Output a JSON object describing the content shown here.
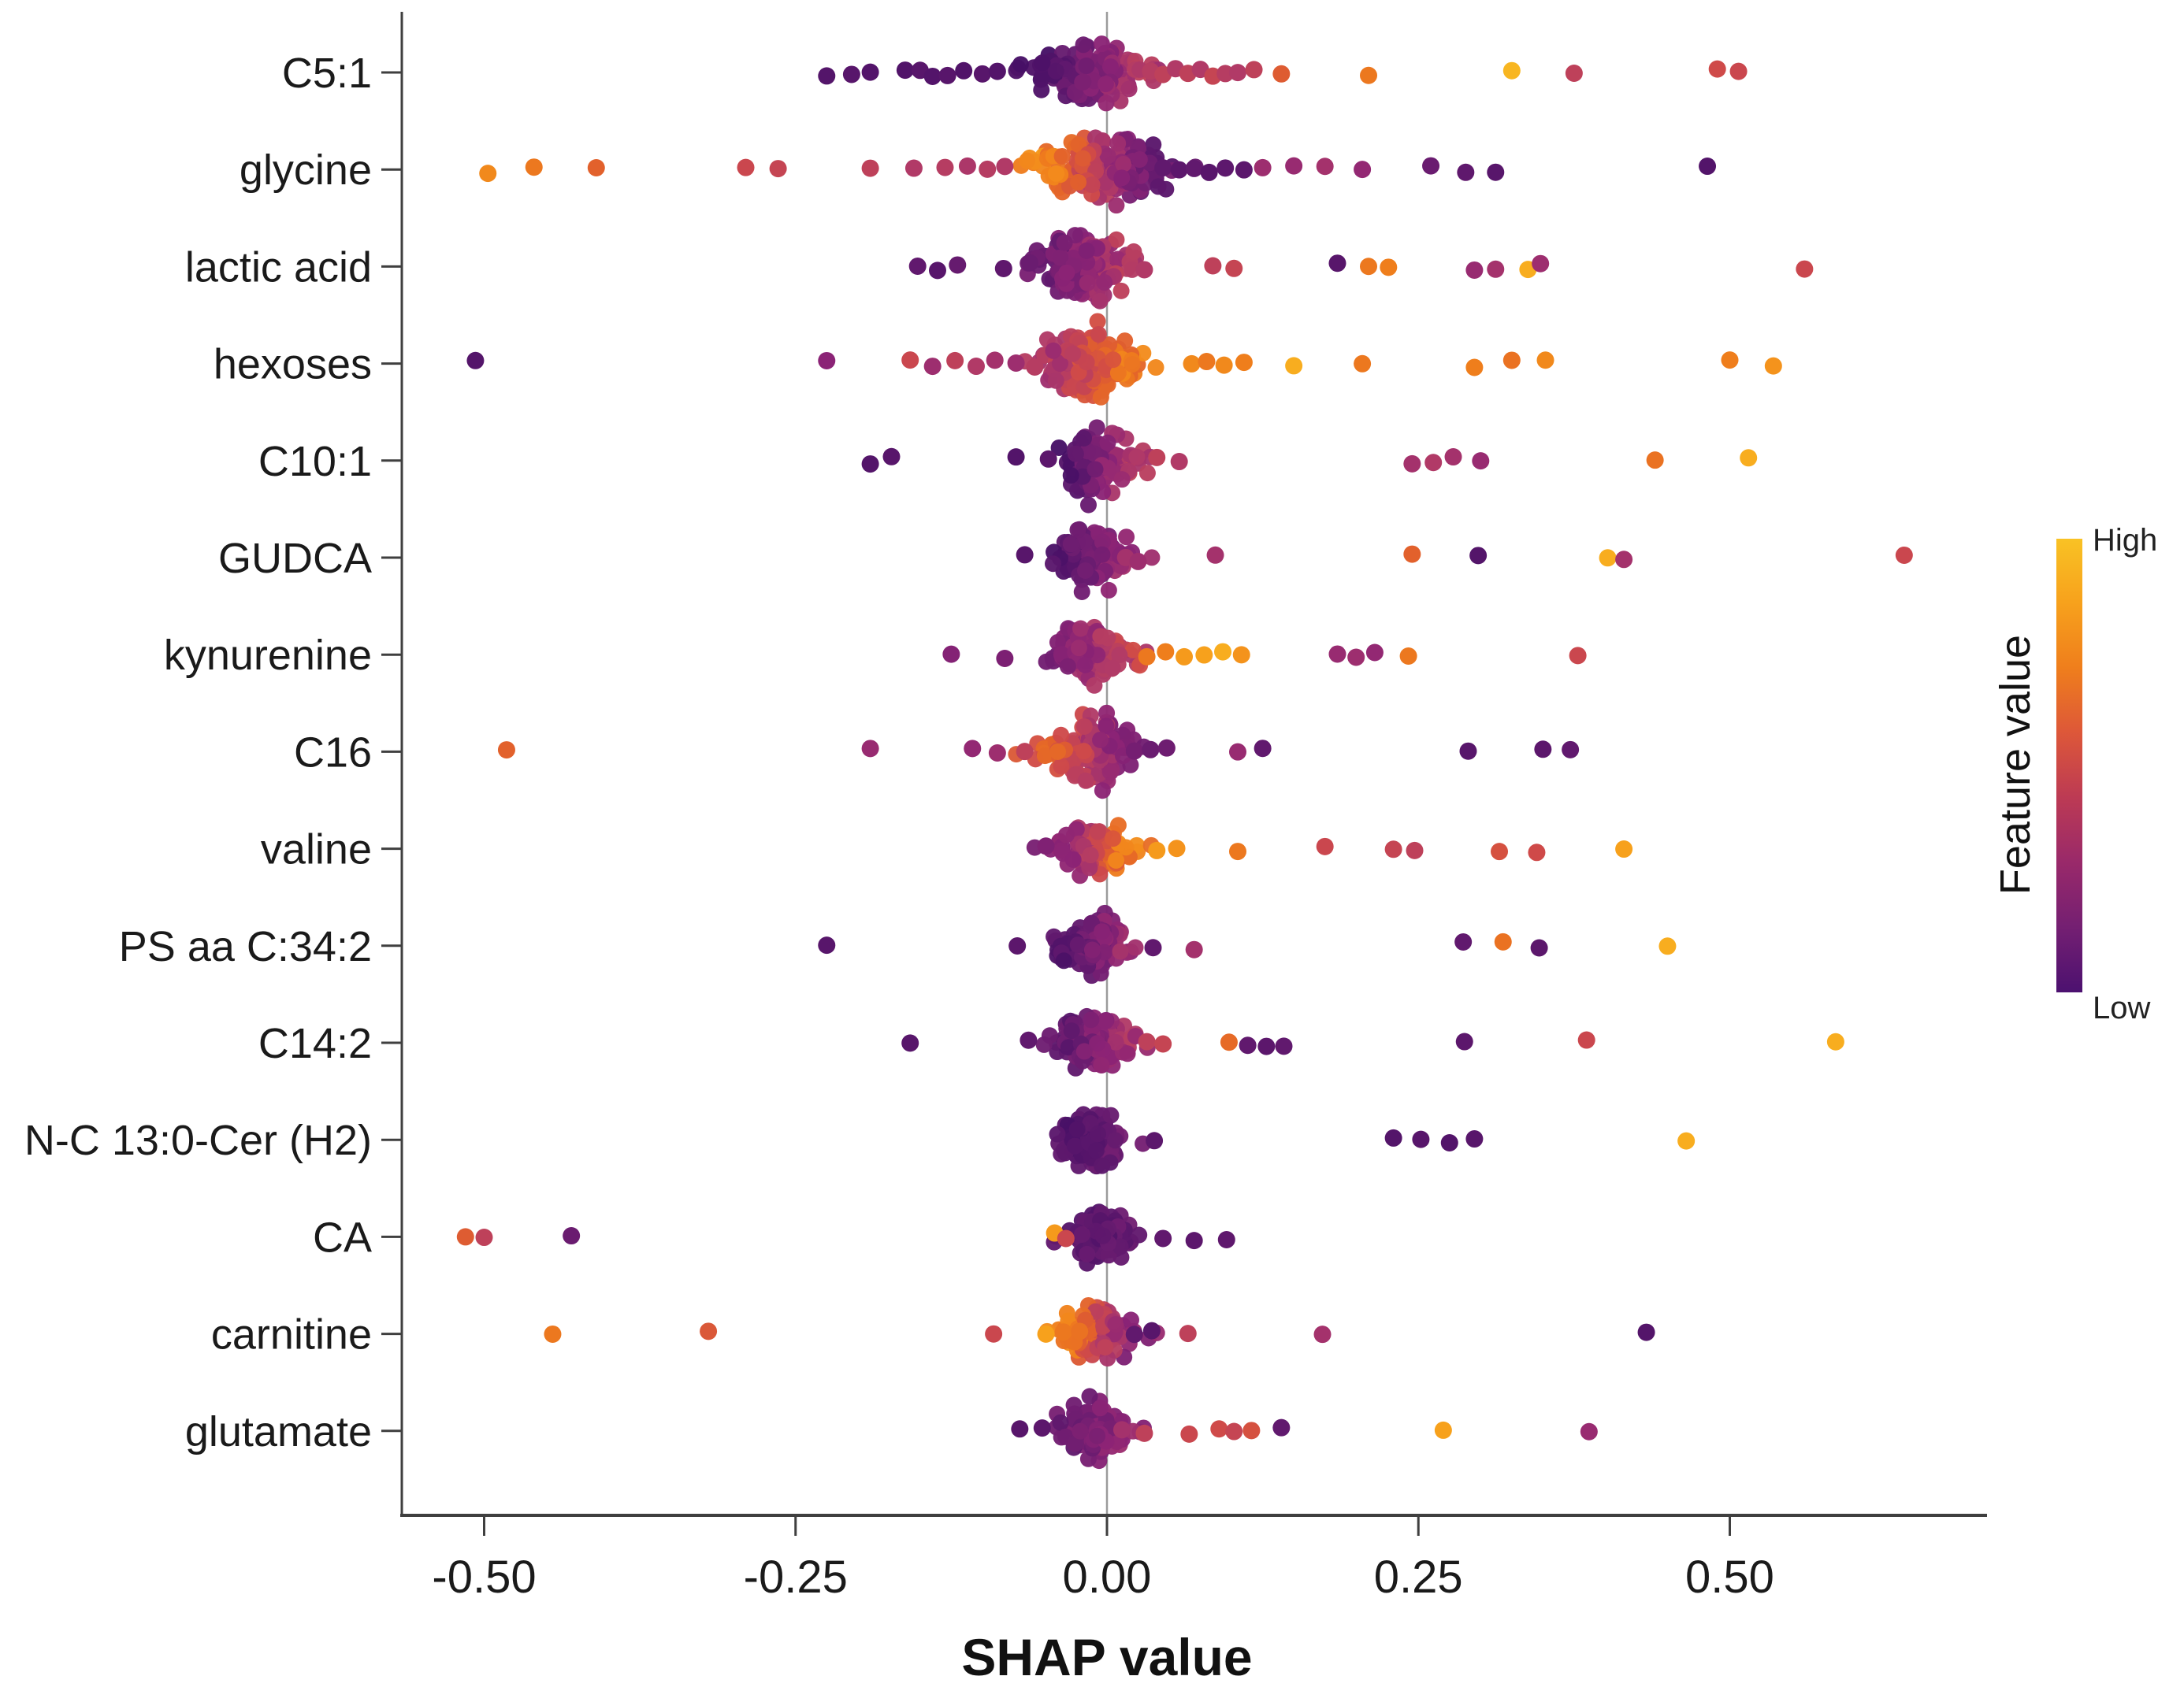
{
  "chart_data": {
    "type": "scatter",
    "subtype": "shap-beeswarm",
    "title": "",
    "xlabel": "SHAP value",
    "ylabel": "",
    "xlim": [
      -0.566,
      0.705
    ],
    "grid": false,
    "zero_line": true,
    "x_ticks": [
      -0.5,
      -0.25,
      0.0,
      0.25,
      0.5
    ],
    "x_tick_labels": [
      "-0.50",
      "-0.25",
      "0.00",
      "0.25",
      "0.50"
    ],
    "legend": {
      "title": "Feature value",
      "high_label": "High",
      "low_label": "Low",
      "position": "right",
      "gradient_top_to_bottom": [
        "#f9c224",
        "#f7a11c",
        "#ef7e1c",
        "#dd5739",
        "#bc3a54",
        "#99296a",
        "#741f72",
        "#4c1170"
      ]
    },
    "colormap_stops": [
      [
        0.0,
        "#461066"
      ],
      [
        0.2,
        "#6a1c70"
      ],
      [
        0.35,
        "#8b2376"
      ],
      [
        0.5,
        "#b13a67"
      ],
      [
        0.62,
        "#cf4a49"
      ],
      [
        0.72,
        "#e2612c"
      ],
      [
        0.82,
        "#ef7e1c"
      ],
      [
        0.92,
        "#f7a11c"
      ],
      [
        1.0,
        "#f9c224"
      ]
    ],
    "features": [
      {
        "name": "C5:1",
        "cluster": {
          "x0": -0.012,
          "sd": 0.024,
          "hh": 55,
          "n": 150,
          "vL": 0.06,
          "vR": 0.5
        },
        "outliers": [
          [
            -0.225,
            0.08
          ],
          [
            -0.205,
            0.1
          ],
          [
            -0.19,
            0.07
          ],
          [
            -0.162,
            0.06
          ],
          [
            -0.15,
            0.1
          ],
          [
            -0.14,
            0.07
          ],
          [
            -0.128,
            0.1
          ],
          [
            -0.115,
            0.06
          ],
          [
            -0.1,
            0.1
          ],
          [
            -0.088,
            0.07
          ],
          [
            0.035,
            0.52
          ],
          [
            0.045,
            0.55
          ],
          [
            0.055,
            0.5
          ],
          [
            0.065,
            0.55
          ],
          [
            0.075,
            0.5
          ],
          [
            0.085,
            0.58
          ],
          [
            0.095,
            0.52
          ],
          [
            0.105,
            0.5
          ],
          [
            0.118,
            0.55
          ],
          [
            0.14,
            0.7
          ],
          [
            0.21,
            0.8
          ],
          [
            0.325,
            0.97
          ],
          [
            0.375,
            0.55
          ],
          [
            0.49,
            0.62
          ],
          [
            0.507,
            0.6
          ]
        ]
      },
      {
        "name": "glycine",
        "cluster": {
          "x0": -0.004,
          "sd": 0.026,
          "hh": 60,
          "n": 160,
          "vL": 0.82,
          "vR": 0.18
        },
        "outliers": [
          [
            -0.497,
            0.85
          ],
          [
            -0.46,
            0.8
          ],
          [
            -0.41,
            0.72
          ],
          [
            -0.29,
            0.6
          ],
          [
            -0.264,
            0.58
          ],
          [
            -0.19,
            0.55
          ],
          [
            -0.155,
            0.5
          ],
          [
            -0.13,
            0.52
          ],
          [
            -0.112,
            0.48
          ],
          [
            -0.096,
            0.52
          ],
          [
            -0.082,
            0.5
          ],
          [
            0.045,
            0.15
          ],
          [
            0.058,
            0.12
          ],
          [
            0.07,
            0.15
          ],
          [
            0.082,
            0.1
          ],
          [
            0.095,
            0.13
          ],
          [
            0.11,
            0.12
          ],
          [
            0.125,
            0.42
          ],
          [
            0.15,
            0.4
          ],
          [
            0.175,
            0.45
          ],
          [
            0.205,
            0.38
          ],
          [
            0.26,
            0.2
          ],
          [
            0.288,
            0.14
          ],
          [
            0.312,
            0.1
          ],
          [
            0.482,
            0.07
          ]
        ]
      },
      {
        "name": "lactic acid",
        "cluster": {
          "x0": -0.02,
          "sd": 0.019,
          "hh": 62,
          "n": 135,
          "vL": 0.2,
          "vR": 0.48
        },
        "outliers": [
          [
            -0.152,
            0.15
          ],
          [
            -0.136,
            0.1
          ],
          [
            -0.12,
            0.18
          ],
          [
            -0.083,
            0.14
          ],
          [
            -0.062,
            0.2
          ],
          [
            0.03,
            0.5
          ],
          [
            0.085,
            0.55
          ],
          [
            0.102,
            0.58
          ],
          [
            0.185,
            0.1
          ],
          [
            0.21,
            0.8
          ],
          [
            0.226,
            0.82
          ],
          [
            0.295,
            0.4
          ],
          [
            0.312,
            0.45
          ],
          [
            0.338,
            0.95
          ],
          [
            0.348,
            0.42
          ],
          [
            0.56,
            0.6
          ]
        ]
      },
      {
        "name": "hexoses",
        "cluster": {
          "x0": -0.012,
          "sd": 0.021,
          "hh": 66,
          "n": 145,
          "vL": 0.48,
          "vR": 0.8
        },
        "outliers": [
          [
            -0.507,
            0.08
          ],
          [
            -0.225,
            0.35
          ],
          [
            -0.158,
            0.6
          ],
          [
            -0.14,
            0.42
          ],
          [
            -0.122,
            0.55
          ],
          [
            -0.105,
            0.5
          ],
          [
            -0.09,
            0.45
          ],
          [
            -0.073,
            0.42
          ],
          [
            -0.058,
            0.52
          ],
          [
            0.068,
            0.85
          ],
          [
            0.08,
            0.8
          ],
          [
            0.094,
            0.85
          ],
          [
            0.11,
            0.82
          ],
          [
            0.15,
            0.95
          ],
          [
            0.205,
            0.8
          ],
          [
            0.295,
            0.82
          ],
          [
            0.325,
            0.78
          ],
          [
            0.352,
            0.85
          ],
          [
            0.5,
            0.82
          ],
          [
            0.535,
            0.88
          ]
        ]
      },
      {
        "name": "C10:1",
        "cluster": {
          "x0": -0.008,
          "sd": 0.016,
          "hh": 68,
          "n": 125,
          "vL": 0.06,
          "vR": 0.52
        },
        "outliers": [
          [
            -0.19,
            0.08
          ],
          [
            -0.173,
            0.1
          ],
          [
            -0.073,
            0.07
          ],
          [
            -0.047,
            0.12
          ],
          [
            0.04,
            0.55
          ],
          [
            0.058,
            0.5
          ],
          [
            0.245,
            0.45
          ],
          [
            0.262,
            0.5
          ],
          [
            0.278,
            0.45
          ],
          [
            0.3,
            0.4
          ],
          [
            0.44,
            0.78
          ],
          [
            0.515,
            0.95
          ]
        ]
      },
      {
        "name": "GUDCA",
        "cluster": {
          "x0": -0.012,
          "sd": 0.015,
          "hh": 58,
          "n": 115,
          "vL": 0.1,
          "vR": 0.4
        },
        "outliers": [
          [
            -0.066,
            0.1
          ],
          [
            0.015,
            0.45
          ],
          [
            0.025,
            0.42
          ],
          [
            0.087,
            0.45
          ],
          [
            0.245,
            0.72
          ],
          [
            0.298,
            0.08
          ],
          [
            0.402,
            0.95
          ],
          [
            0.415,
            0.45
          ],
          [
            0.64,
            0.6
          ]
        ]
      },
      {
        "name": "kynurenine",
        "cluster": {
          "x0": -0.012,
          "sd": 0.016,
          "hh": 56,
          "n": 115,
          "vL": 0.3,
          "vR": 0.55
        },
        "outliers": [
          [
            -0.125,
            0.32
          ],
          [
            -0.082,
            0.28
          ],
          [
            0.032,
            0.8
          ],
          [
            0.047,
            0.82
          ],
          [
            0.062,
            0.9
          ],
          [
            0.078,
            0.92
          ],
          [
            0.093,
            0.95
          ],
          [
            0.108,
            0.88
          ],
          [
            0.185,
            0.4
          ],
          [
            0.2,
            0.42
          ],
          [
            0.215,
            0.38
          ],
          [
            0.242,
            0.8
          ],
          [
            0.378,
            0.6
          ]
        ]
      },
      {
        "name": "C16",
        "cluster": {
          "x0": -0.012,
          "sd": 0.019,
          "hh": 60,
          "n": 135,
          "vL": 0.7,
          "vR": 0.28
        },
        "outliers": [
          [
            -0.482,
            0.72
          ],
          [
            -0.19,
            0.4
          ],
          [
            -0.108,
            0.38
          ],
          [
            -0.088,
            0.42
          ],
          [
            -0.066,
            0.55
          ],
          [
            0.022,
            0.25
          ],
          [
            0.035,
            0.2
          ],
          [
            0.048,
            0.22
          ],
          [
            0.105,
            0.4
          ],
          [
            0.125,
            0.15
          ],
          [
            0.29,
            0.1
          ],
          [
            0.35,
            0.12
          ],
          [
            0.372,
            0.15
          ]
        ]
      },
      {
        "name": "valine",
        "cluster": {
          "x0": -0.01,
          "sd": 0.015,
          "hh": 48,
          "n": 105,
          "vL": 0.32,
          "vR": 0.82
        },
        "outliers": [
          [
            -0.049,
            0.3
          ],
          [
            0.04,
            0.9
          ],
          [
            0.056,
            0.88
          ],
          [
            0.105,
            0.8
          ],
          [
            0.175,
            0.6
          ],
          [
            0.23,
            0.58
          ],
          [
            0.247,
            0.55
          ],
          [
            0.315,
            0.65
          ],
          [
            0.345,
            0.62
          ],
          [
            0.415,
            0.92
          ]
        ]
      },
      {
        "name": "PS aa C:34:2",
        "cluster": {
          "x0": -0.012,
          "sd": 0.014,
          "hh": 52,
          "n": 112,
          "vL": 0.1,
          "vR": 0.38
        },
        "outliers": [
          [
            -0.225,
            0.1
          ],
          [
            -0.072,
            0.12
          ],
          [
            0.037,
            0.15
          ],
          [
            0.07,
            0.45
          ],
          [
            0.286,
            0.15
          ],
          [
            0.318,
            0.78
          ],
          [
            0.347,
            0.12
          ],
          [
            0.45,
            0.95
          ]
        ]
      },
      {
        "name": "C14:2",
        "cluster": {
          "x0": -0.01,
          "sd": 0.015,
          "hh": 55,
          "n": 112,
          "vL": 0.15,
          "vR": 0.45
        },
        "outliers": [
          [
            -0.158,
            0.1
          ],
          [
            -0.063,
            0.15
          ],
          [
            0.032,
            0.55
          ],
          [
            0.045,
            0.58
          ],
          [
            0.098,
            0.75
          ],
          [
            0.113,
            0.15
          ],
          [
            0.128,
            0.12
          ],
          [
            0.142,
            0.15
          ],
          [
            0.287,
            0.12
          ],
          [
            0.385,
            0.6
          ],
          [
            0.585,
            0.95
          ]
        ]
      },
      {
        "name": "N-C 13:0-Cer (H2)",
        "cluster": {
          "x0": -0.012,
          "sd": 0.013,
          "hh": 50,
          "n": 100,
          "vL": 0.08,
          "vR": 0.2
        },
        "outliers": [
          [
            0.038,
            0.12
          ],
          [
            0.23,
            0.08
          ],
          [
            0.252,
            0.1
          ],
          [
            0.275,
            0.07
          ],
          [
            0.295,
            0.1
          ],
          [
            0.465,
            0.95
          ]
        ]
      },
      {
        "name": "CA",
        "cluster": {
          "x0": -0.006,
          "sd": 0.014,
          "hh": 48,
          "n": 112,
          "vL": 0.12,
          "vR": 0.16
        },
        "outliers": [
          [
            -0.515,
            0.7
          ],
          [
            -0.5,
            0.55
          ],
          [
            -0.43,
            0.2
          ],
          [
            -0.042,
            0.9
          ],
          [
            -0.033,
            0.6
          ],
          [
            0.045,
            0.15
          ],
          [
            0.07,
            0.12
          ],
          [
            0.096,
            0.14
          ]
        ]
      },
      {
        "name": "carnitine",
        "cluster": {
          "x0": -0.008,
          "sd": 0.015,
          "hh": 52,
          "n": 112,
          "vL": 0.85,
          "vR": 0.35
        },
        "outliers": [
          [
            -0.445,
            0.8
          ],
          [
            -0.32,
            0.68
          ],
          [
            -0.091,
            0.6
          ],
          [
            -0.049,
            0.92
          ],
          [
            -0.035,
            0.8
          ],
          [
            -0.022,
            0.78
          ],
          [
            0.022,
            0.15
          ],
          [
            0.036,
            0.1
          ],
          [
            0.065,
            0.55
          ],
          [
            0.173,
            0.45
          ],
          [
            0.433,
            0.08
          ]
        ]
      },
      {
        "name": "glutamate",
        "cluster": {
          "x0": -0.012,
          "sd": 0.014,
          "hh": 55,
          "n": 112,
          "vL": 0.2,
          "vR": 0.35
        },
        "outliers": [
          [
            -0.07,
            0.1
          ],
          [
            -0.052,
            0.12
          ],
          [
            0.012,
            0.45
          ],
          [
            0.03,
            0.55
          ],
          [
            0.066,
            0.6
          ],
          [
            0.09,
            0.62
          ],
          [
            0.102,
            0.58
          ],
          [
            0.116,
            0.65
          ],
          [
            0.14,
            0.15
          ],
          [
            0.27,
            0.92
          ],
          [
            0.387,
            0.4
          ]
        ]
      }
    ]
  }
}
